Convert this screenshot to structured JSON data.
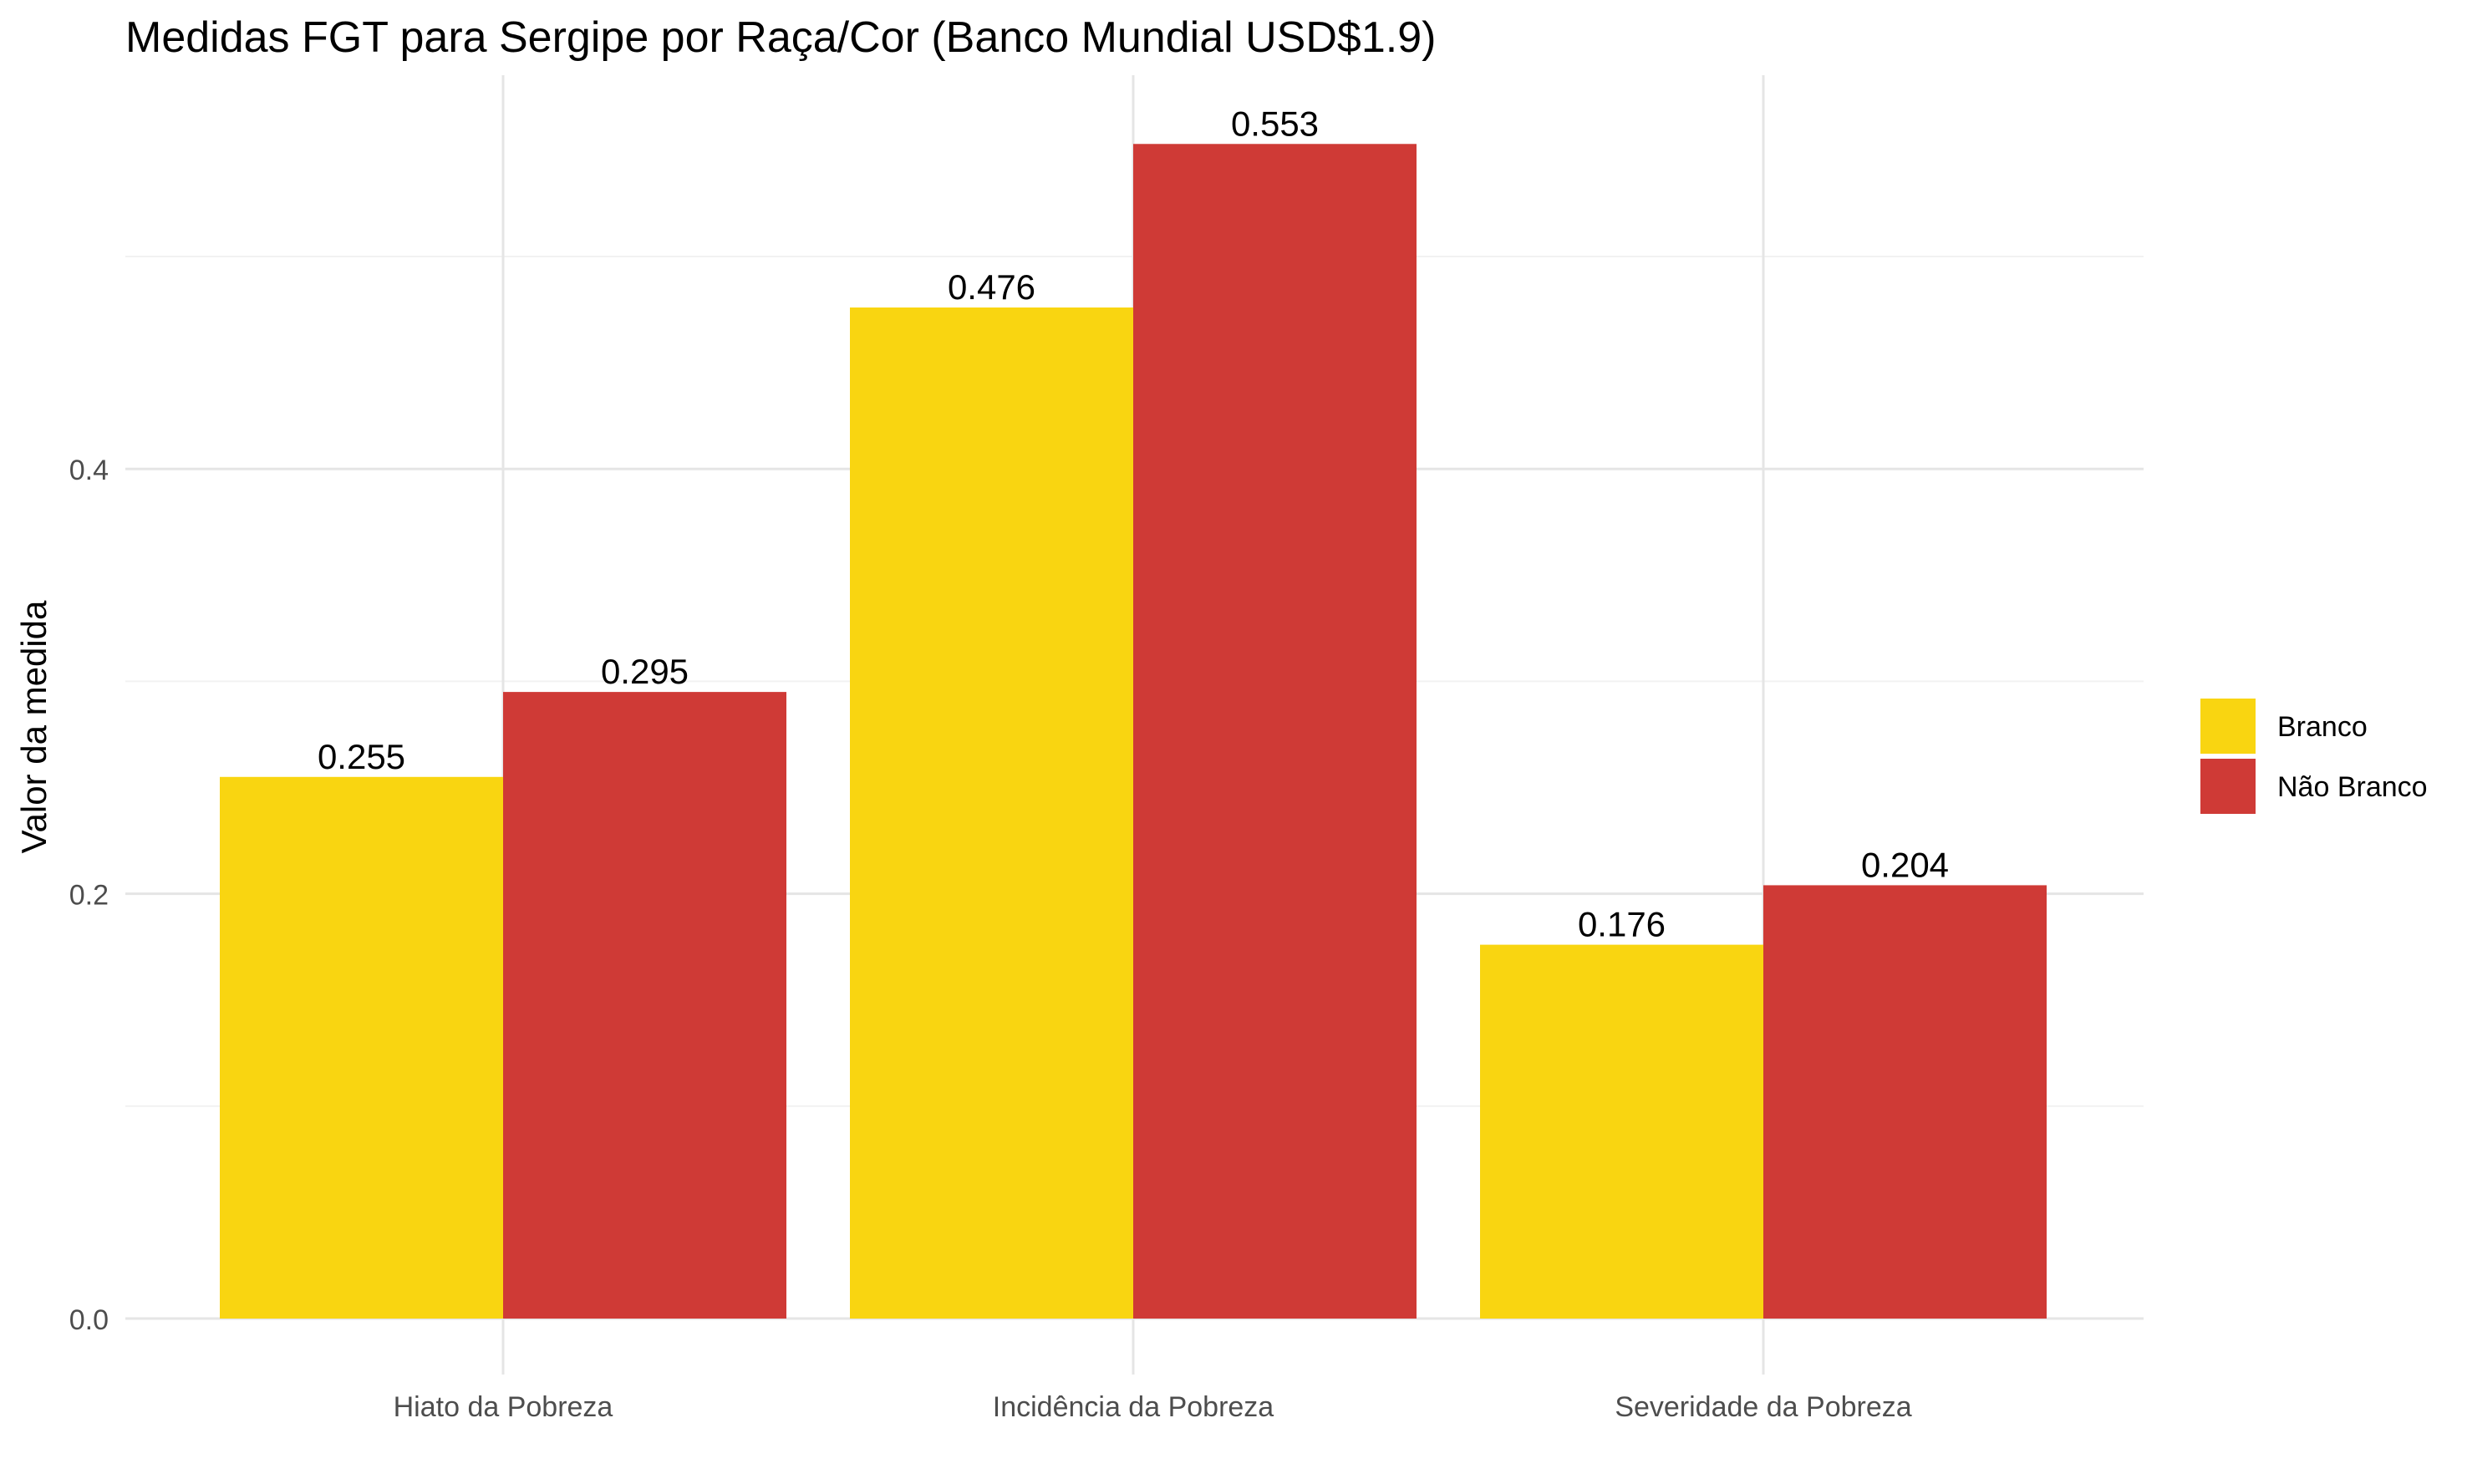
{
  "chart_data": {
    "type": "bar",
    "title": "Medidas FGT para Sergipe por Raça/Cor (Banco Mundial USD$1.9)",
    "xlabel": "",
    "ylabel": "Valor da medida",
    "categories": [
      "Hiato da Pobreza",
      "Incidência da Pobreza",
      "Severidade da Pobreza"
    ],
    "series": [
      {
        "name": "Branco",
        "color": "#F9D511",
        "values": [
          0.255,
          0.476,
          0.176
        ],
        "labels": [
          "0.255",
          "0.476",
          "0.176"
        ]
      },
      {
        "name": "Não Branco",
        "color": "#CF3A36",
        "values": [
          0.295,
          0.553,
          0.204
        ],
        "labels": [
          "0.295",
          "0.553",
          "0.204"
        ]
      }
    ],
    "ylim": [
      0,
      0.5806
    ],
    "yticks": [
      0.0,
      0.2,
      0.4
    ],
    "ytick_labels": [
      "0.0",
      "0.2",
      "0.4"
    ],
    "minor_yticks": [
      0.1,
      0.3,
      0.5
    ],
    "grid": true,
    "legend_position": "right"
  }
}
